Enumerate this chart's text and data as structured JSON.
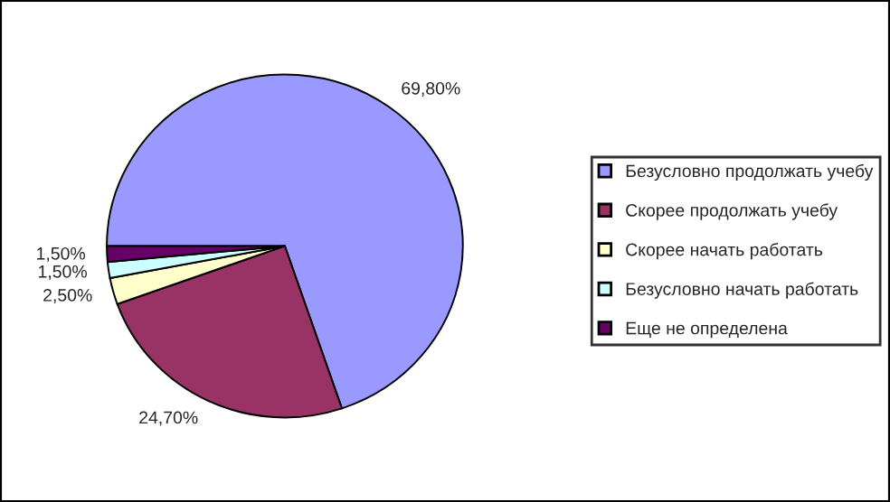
{
  "chart_data": {
    "type": "pie",
    "categories": [
      "Безусловно продолжать учебу",
      "Скорее продолжать учебу",
      "Скорее начать работать",
      "Безусловно начать работать",
      "Еще не определена"
    ],
    "values": [
      69.8,
      24.7,
      2.5,
      1.5,
      1.5
    ],
    "value_labels": [
      "69,80%",
      "24,70%",
      "2,50%",
      "1,50%",
      "1,50%"
    ],
    "colors": [
      "#9999ff",
      "#993366",
      "#ffffcc",
      "#ccffff",
      "#660066"
    ],
    "legend": "right"
  }
}
